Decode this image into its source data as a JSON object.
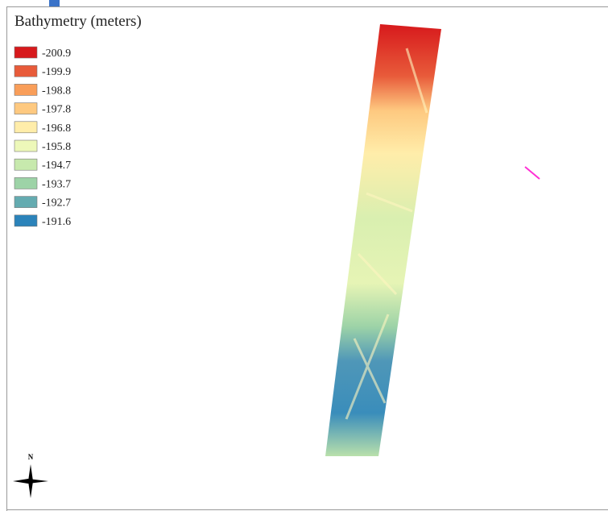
{
  "legend": {
    "title": "Bathymetry (meters)",
    "items": [
      {
        "label": "-200.9",
        "color": "#d7191c"
      },
      {
        "label": "-199.9",
        "color": "#e85b3a"
      },
      {
        "label": "-198.8",
        "color": "#f99e59"
      },
      {
        "label": "-197.8",
        "color": "#fec980"
      },
      {
        "label": "-196.8",
        "color": "#ffedaa"
      },
      {
        "label": "-195.8",
        "color": "#edf8b9"
      },
      {
        "label": "-194.7",
        "color": "#c7e9ad"
      },
      {
        "label": "-193.7",
        "color": "#9dd3a7"
      },
      {
        "label": "-192.7",
        "color": "#64abb0"
      },
      {
        "label": "-191.6",
        "color": "#2b83ba"
      }
    ]
  },
  "north_arrow": {
    "label": "N"
  }
}
